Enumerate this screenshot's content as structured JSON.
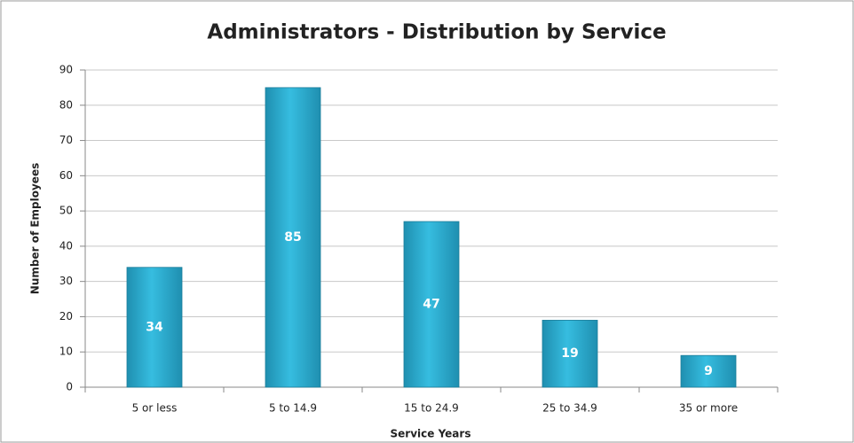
{
  "chart_data": {
    "type": "bar",
    "title": "Administrators - Distribution by Service",
    "x_label": "Service Years",
    "y_label": "Number of Employees",
    "categories": [
      "5 or less",
      "5 to 14.9",
      "15 to 24.9",
      "25 to 34.9",
      "35 or more"
    ],
    "values": [
      34,
      85,
      47,
      19,
      9
    ],
    "color": "#36bde0",
    "ylim": [
      0,
      90
    ],
    "yticks": [
      0,
      10,
      20,
      30,
      40,
      50,
      60,
      70,
      80,
      90
    ],
    "grid": true
  }
}
